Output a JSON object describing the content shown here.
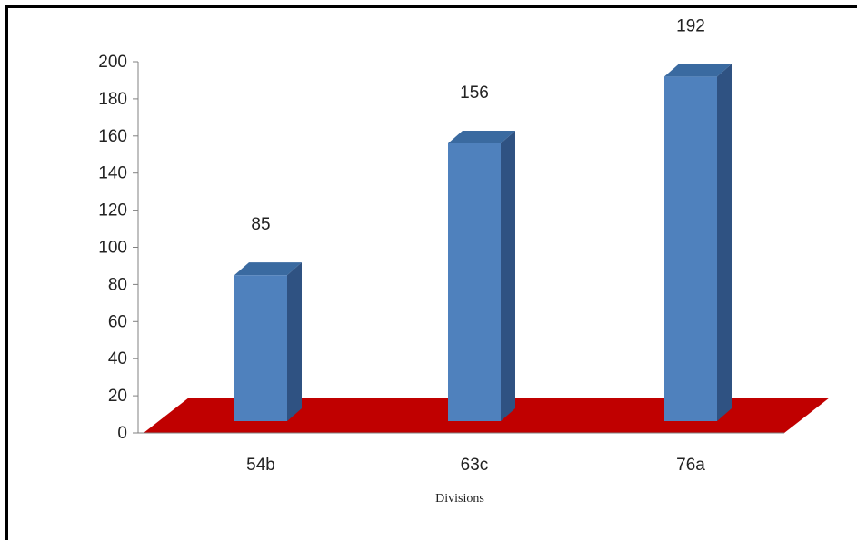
{
  "chart_data": {
    "type": "bar",
    "categories": [
      "54b",
      "63c",
      "76a"
    ],
    "values": [
      85,
      156,
      192
    ],
    "data_labels": [
      "85",
      "156",
      "192"
    ],
    "title": "",
    "xlabel": "Divisions",
    "ylabel": "",
    "ylim": [
      0,
      200
    ],
    "yticks": [
      "0",
      "20",
      "40",
      "60",
      "80",
      "100",
      "120",
      "140",
      "160",
      "180",
      "200"
    ],
    "grid": false,
    "legend": "none",
    "style": "3d-column",
    "colors": {
      "bar_front": "#4f81bd",
      "bar_side": "#2f5282",
      "bar_top": "#3a6aa0",
      "floor": "#c00000",
      "axis": "#808080"
    }
  }
}
